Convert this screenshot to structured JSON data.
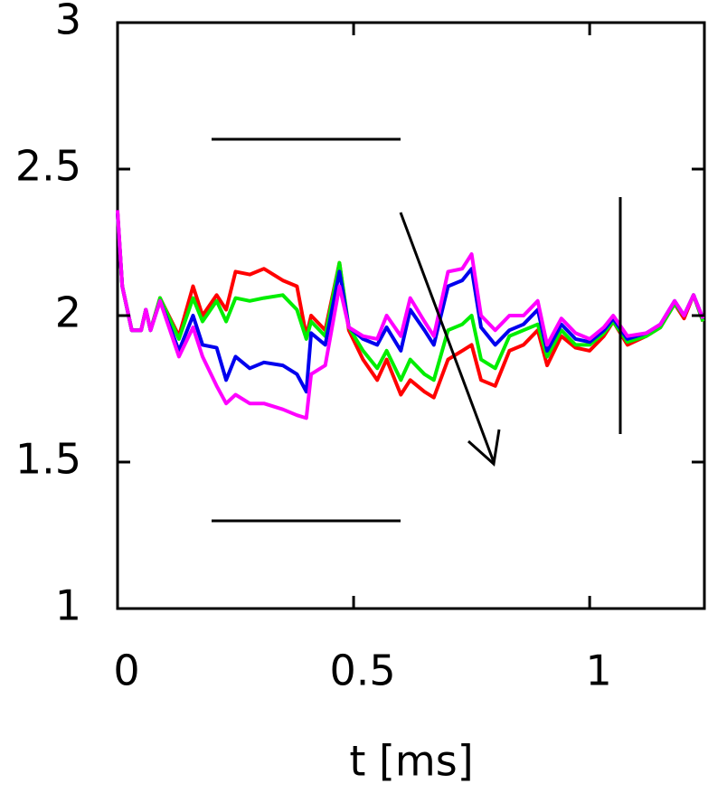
{
  "chart_data": {
    "type": "line",
    "x_label": "t [ms]",
    "x": [
      0,
      0.01,
      0.03,
      0.05,
      0.06,
      0.07,
      0.09,
      0.13,
      0.16,
      0.18,
      0.21,
      0.23,
      0.25,
      0.28,
      0.31,
      0.35,
      0.38,
      0.4,
      0.41,
      0.44,
      0.47,
      0.49,
      0.52,
      0.55,
      0.57,
      0.6,
      0.62,
      0.65,
      0.67,
      0.7,
      0.73,
      0.75,
      0.77,
      0.8,
      0.83,
      0.86,
      0.89,
      0.91,
      0.94,
      0.97,
      1.0,
      1.03,
      1.05,
      1.08,
      1.12,
      1.15,
      1.18,
      1.2,
      1.22,
      1.24
    ],
    "series": [
      {
        "color": "#ff0000",
        "values": [
          2.35,
          2.1,
          1.95,
          1.95,
          2.02,
          1.95,
          2.06,
          1.93,
          2.1,
          2.0,
          2.07,
          2.02,
          2.15,
          2.14,
          2.16,
          2.12,
          2.1,
          1.93,
          2.0,
          1.95,
          2.18,
          1.95,
          1.85,
          1.78,
          1.85,
          1.73,
          1.78,
          1.74,
          1.72,
          1.85,
          1.88,
          1.9,
          1.78,
          1.76,
          1.88,
          1.9,
          1.95,
          1.83,
          1.93,
          1.89,
          1.88,
          1.93,
          1.98,
          1.9,
          1.93,
          1.96,
          2.04,
          1.99,
          2.07,
          1.98
        ]
      },
      {
        "color": "#00ee00",
        "values": [
          2.35,
          2.1,
          1.95,
          1.95,
          2.02,
          1.95,
          2.06,
          1.92,
          2.06,
          1.98,
          2.05,
          1.98,
          2.06,
          2.05,
          2.06,
          2.07,
          2.02,
          1.92,
          1.98,
          1.93,
          2.18,
          1.96,
          1.88,
          1.82,
          1.88,
          1.78,
          1.85,
          1.8,
          1.78,
          1.95,
          1.97,
          2.0,
          1.85,
          1.82,
          1.93,
          1.95,
          1.97,
          1.86,
          1.95,
          1.9,
          1.9,
          1.94,
          1.98,
          1.91,
          1.93,
          1.96,
          2.04,
          2.0,
          2.07,
          1.98
        ]
      },
      {
        "color": "#0000ee",
        "values": [
          2.35,
          2.1,
          1.95,
          1.95,
          2.02,
          1.95,
          2.05,
          1.88,
          2.0,
          1.9,
          1.89,
          1.78,
          1.86,
          1.82,
          1.84,
          1.83,
          1.8,
          1.74,
          1.94,
          1.9,
          2.15,
          1.96,
          1.92,
          1.9,
          1.96,
          1.88,
          2.02,
          1.95,
          1.9,
          2.1,
          2.12,
          2.16,
          1.96,
          1.9,
          1.95,
          1.97,
          2.02,
          1.88,
          1.97,
          1.92,
          1.91,
          1.95,
          1.99,
          1.92,
          1.94,
          1.97,
          2.05,
          2.0,
          2.07,
          1.99
        ]
      },
      {
        "color": "#ff00ff",
        "values": [
          2.36,
          2.1,
          1.95,
          1.95,
          2.02,
          1.95,
          2.05,
          1.86,
          1.96,
          1.86,
          1.76,
          1.7,
          1.73,
          1.7,
          1.7,
          1.68,
          1.66,
          1.65,
          1.8,
          1.83,
          2.1,
          1.96,
          1.93,
          1.92,
          2.0,
          1.93,
          2.06,
          1.98,
          1.93,
          2.15,
          2.16,
          2.21,
          2.0,
          1.95,
          2.0,
          2.0,
          2.05,
          1.9,
          1.99,
          1.94,
          1.92,
          1.96,
          2.0,
          1.93,
          1.94,
          1.97,
          2.05,
          2.0,
          2.07,
          1.99
        ]
      }
    ],
    "xlim": [
      0,
      1.243
    ],
    "ylim": [
      1,
      3
    ],
    "xticks": [
      0,
      0.5,
      1
    ],
    "yticks": [
      1,
      1.5,
      2,
      2.5,
      3
    ]
  }
}
